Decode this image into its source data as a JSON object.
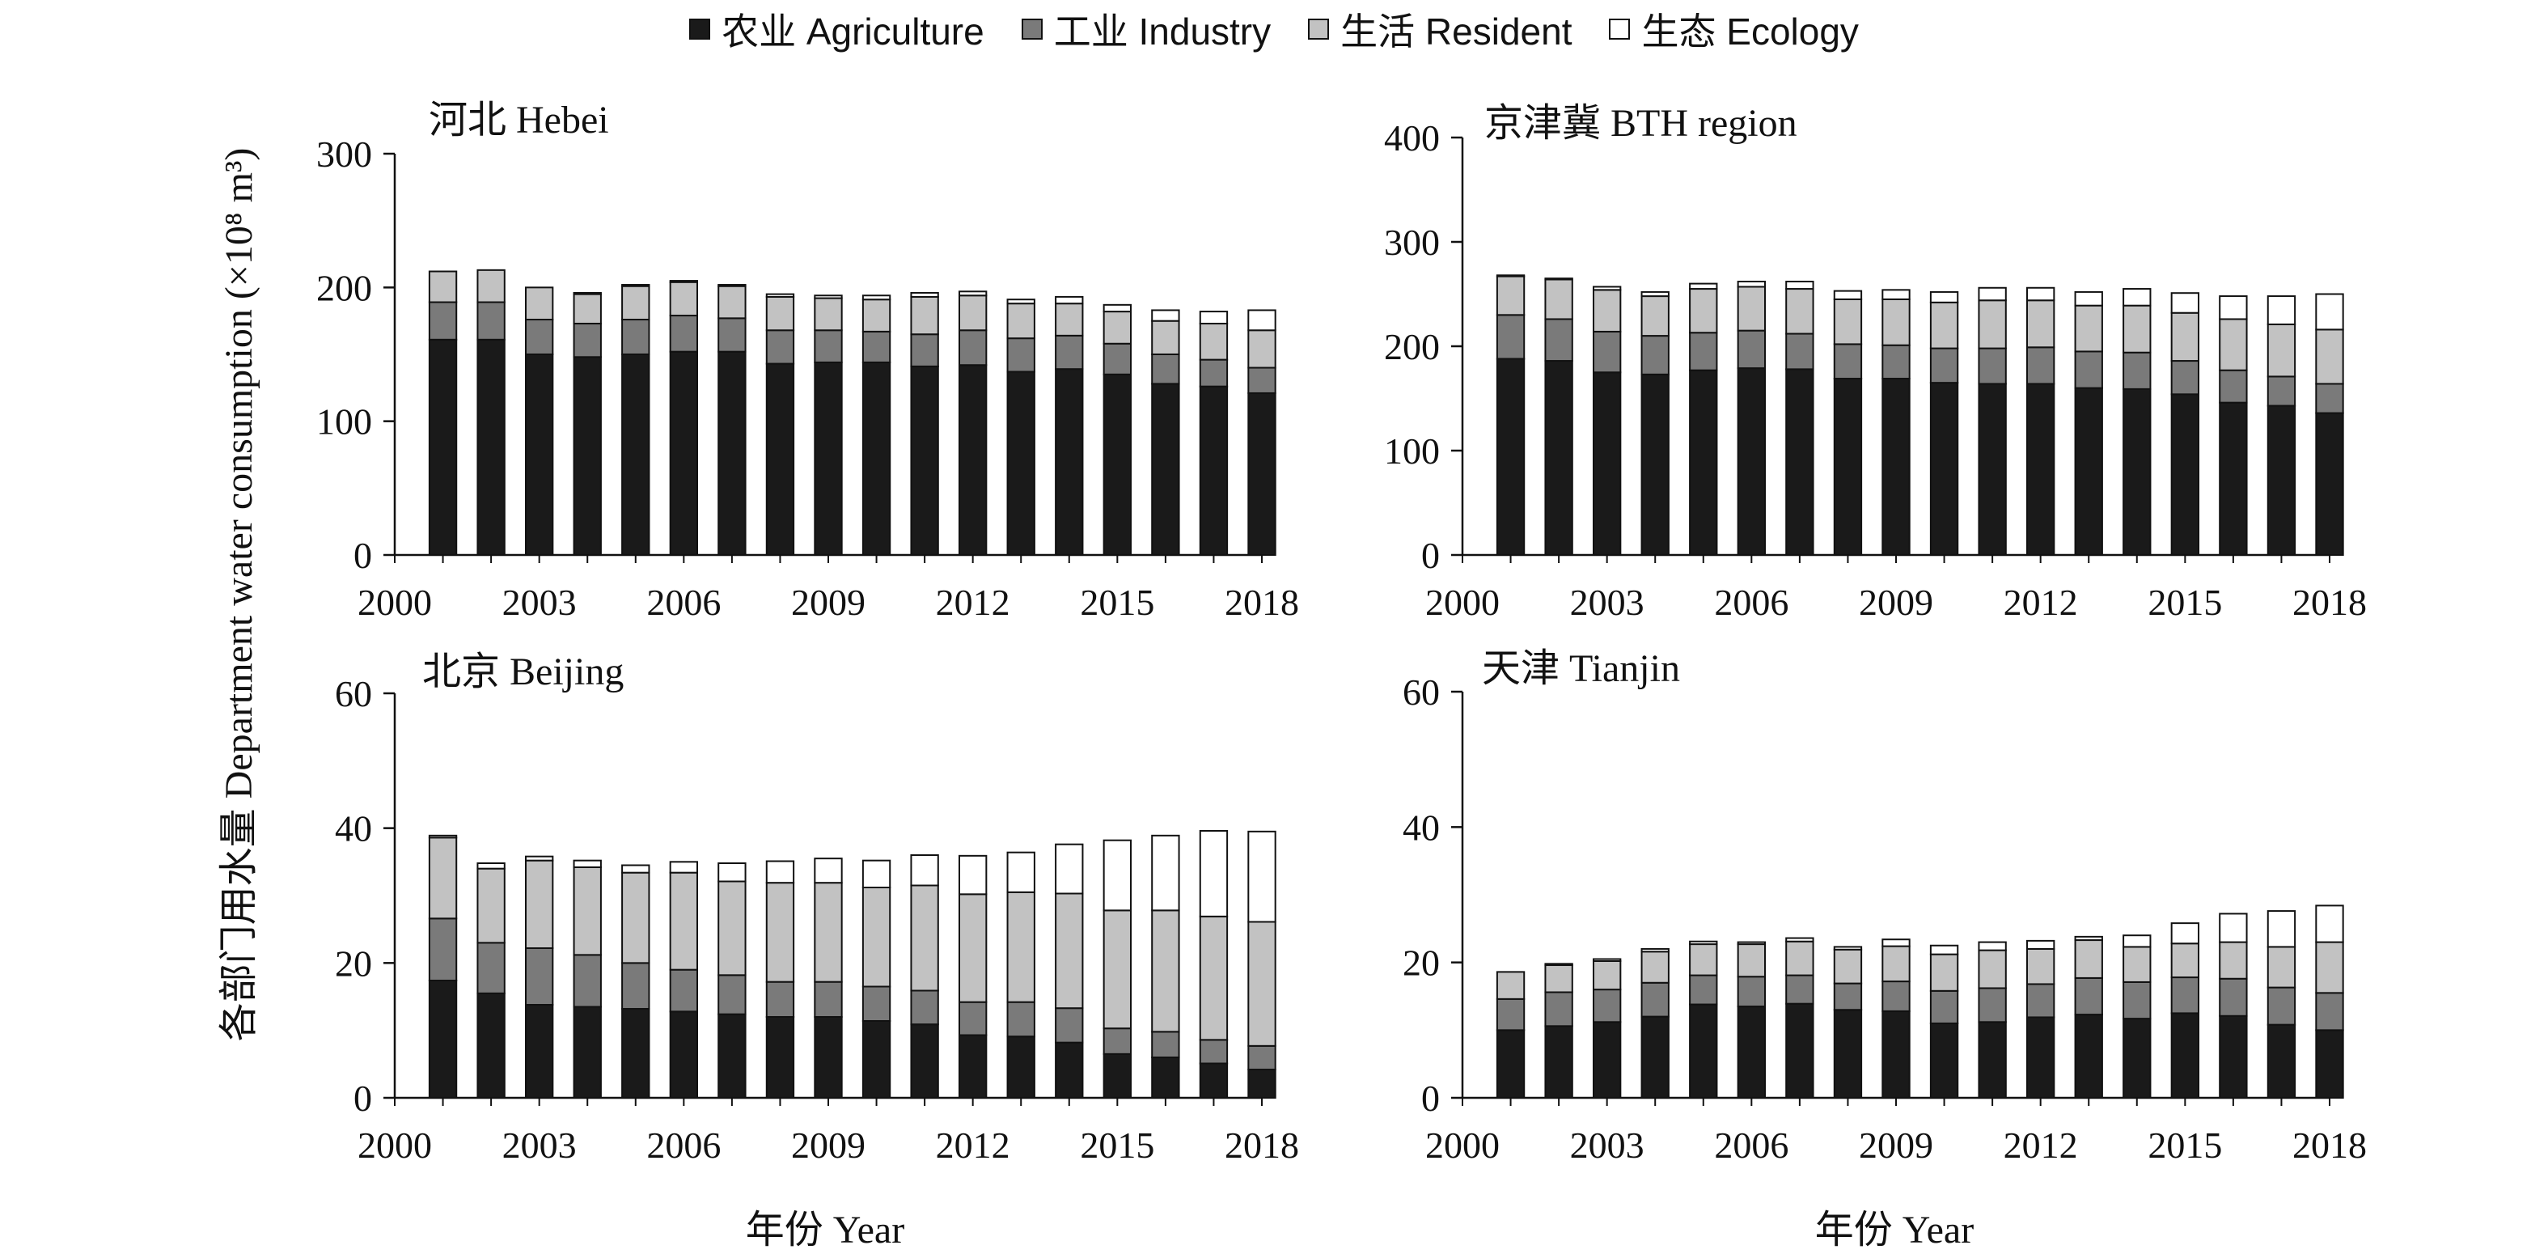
{
  "legend": [
    {
      "name": "农业 Agriculture",
      "color": "#1a1a1a"
    },
    {
      "name": "工业 Industry",
      "color": "#7a7a7a"
    },
    {
      "name": "生活 Resident",
      "color": "#c2c2c2"
    },
    {
      "name": "生态 Ecology",
      "color": "#ffffff"
    }
  ],
  "ylabel": "各部门用水量 Department water consumption (×10⁸ m³)",
  "xlabel": "年份 Year",
  "chart_data": [
    {
      "type": "bar",
      "stacked": true,
      "title": "河北 Hebei",
      "xlabel": "",
      "ylabel": "",
      "ylim": [
        0,
        300
      ],
      "yticks": [
        0,
        100,
        200,
        300
      ],
      "xlim": [
        2000,
        2018
      ],
      "xticks": [
        2000,
        2003,
        2006,
        2009,
        2012,
        2015,
        2018
      ],
      "x": [
        2001,
        2002,
        2003,
        2004,
        2005,
        2006,
        2007,
        2008,
        2009,
        2010,
        2011,
        2012,
        2013,
        2014,
        2015,
        2016,
        2017,
        2018
      ],
      "series": [
        {
          "name": "农业 Agriculture",
          "values": [
            161,
            161,
            150,
            148,
            150,
            152,
            152,
            143,
            144,
            144,
            141,
            142,
            137,
            139,
            135,
            128,
            126,
            121
          ]
        },
        {
          "name": "工业 Industry",
          "values": [
            28,
            28,
            26,
            25,
            26,
            27,
            25,
            25,
            24,
            23,
            24,
            26,
            25,
            25,
            23,
            22,
            20,
            19
          ]
        },
        {
          "name": "生活 Resident",
          "values": [
            23,
            24,
            24,
            22,
            25,
            25,
            24,
            25,
            24,
            24,
            28,
            26,
            26,
            24,
            24,
            25,
            27,
            28
          ]
        },
        {
          "name": "生态 Ecology",
          "values": [
            0,
            0,
            0,
            1,
            1,
            1,
            1,
            2,
            2,
            3,
            3,
            3,
            3,
            5,
            5,
            8,
            9,
            15
          ]
        }
      ]
    },
    {
      "type": "bar",
      "stacked": true,
      "title": "京津冀 BTH region",
      "xlabel": "",
      "ylabel": "",
      "ylim": [
        0,
        400
      ],
      "yticks": [
        0,
        100,
        200,
        300,
        400
      ],
      "xlim": [
        2000,
        2018
      ],
      "xticks": [
        2000,
        2003,
        2006,
        2009,
        2012,
        2015,
        2018
      ],
      "x": [
        2001,
        2002,
        2003,
        2004,
        2005,
        2006,
        2007,
        2008,
        2009,
        2010,
        2011,
        2012,
        2013,
        2014,
        2015,
        2016,
        2017,
        2018
      ],
      "series": [
        {
          "name": "农业 Agriculture",
          "values": [
            188,
            186,
            175,
            173,
            177,
            179,
            178,
            169,
            169,
            165,
            164,
            164,
            160,
            159,
            154,
            146,
            143,
            136
          ]
        },
        {
          "name": "工业 Industry",
          "values": [
            42,
            40,
            39,
            37,
            36,
            36,
            34,
            33,
            32,
            33,
            34,
            35,
            35,
            35,
            32,
            31,
            28,
            28
          ]
        },
        {
          "name": "生活 Resident",
          "values": [
            37,
            38,
            40,
            38,
            42,
            42,
            43,
            43,
            44,
            44,
            46,
            45,
            44,
            45,
            46,
            49,
            50,
            52
          ]
        },
        {
          "name": "生态 Ecology",
          "values": [
            1,
            1,
            3,
            4,
            5,
            5,
            7,
            8,
            9,
            10,
            12,
            12,
            13,
            16,
            19,
            22,
            27,
            34
          ]
        }
      ]
    },
    {
      "type": "bar",
      "stacked": true,
      "title": "北京 Beijing",
      "xlabel": "",
      "ylabel": "",
      "ylim": [
        0,
        60
      ],
      "yticks": [
        0,
        20,
        40,
        60
      ],
      "xlim": [
        2000,
        2018
      ],
      "xticks": [
        2000,
        2003,
        2006,
        2009,
        2012,
        2015,
        2018
      ],
      "x": [
        2001,
        2002,
        2003,
        2004,
        2005,
        2006,
        2007,
        2008,
        2009,
        2010,
        2011,
        2012,
        2013,
        2014,
        2015,
        2016,
        2017,
        2018
      ],
      "series": [
        {
          "name": "农业 Agriculture",
          "values": [
            17.4,
            15.5,
            13.8,
            13.5,
            13.2,
            12.8,
            12.4,
            12.0,
            12.0,
            11.4,
            10.9,
            9.3,
            9.1,
            8.2,
            6.5,
            6.0,
            5.1,
            4.2
          ]
        },
        {
          "name": "工业 Industry",
          "values": [
            9.2,
            7.5,
            8.4,
            7.7,
            6.8,
            6.2,
            5.8,
            5.2,
            5.2,
            5.1,
            5.0,
            4.9,
            5.1,
            5.1,
            3.8,
            3.8,
            3.5,
            3.5
          ]
        },
        {
          "name": "生活 Resident",
          "values": [
            12.0,
            11.0,
            13.0,
            13.0,
            13.4,
            14.4,
            13.9,
            14.7,
            14.7,
            14.7,
            15.6,
            16.0,
            16.3,
            17.0,
            17.5,
            18.0,
            18.3,
            18.4
          ]
        },
        {
          "name": "生态 Ecology",
          "values": [
            0.3,
            0.8,
            0.6,
            1.0,
            1.1,
            1.6,
            2.7,
            3.2,
            3.6,
            4.0,
            4.5,
            5.7,
            5.9,
            7.3,
            10.4,
            11.1,
            12.7,
            13.4
          ]
        }
      ]
    },
    {
      "type": "bar",
      "stacked": true,
      "title": "天津 Tianjin",
      "xlabel": "",
      "ylabel": "",
      "ylim": [
        0,
        60
      ],
      "yticks": [
        0,
        20,
        40,
        60
      ],
      "xlim": [
        2000,
        2018
      ],
      "xticks": [
        2000,
        2003,
        2006,
        2009,
        2012,
        2015,
        2018
      ],
      "x": [
        2001,
        2002,
        2003,
        2004,
        2005,
        2006,
        2007,
        2008,
        2009,
        2010,
        2011,
        2012,
        2013,
        2014,
        2015,
        2016,
        2017,
        2018
      ],
      "series": [
        {
          "name": "农业 Agriculture",
          "values": [
            10.0,
            10.6,
            11.2,
            12.0,
            13.8,
            13.5,
            13.9,
            13.0,
            12.8,
            11.0,
            11.2,
            11.9,
            12.3,
            11.7,
            12.5,
            12.1,
            10.8,
            10.0
          ]
        },
        {
          "name": "工业 Industry",
          "values": [
            4.6,
            5.0,
            4.8,
            5.0,
            4.3,
            4.4,
            4.2,
            3.9,
            4.4,
            4.8,
            5.0,
            4.9,
            5.4,
            5.4,
            5.3,
            5.5,
            5.5,
            5.5
          ]
        },
        {
          "name": "生活 Resident",
          "values": [
            4.0,
            4.0,
            4.2,
            4.6,
            4.6,
            4.8,
            5.0,
            5.0,
            5.2,
            5.4,
            5.6,
            5.2,
            5.6,
            5.2,
            5.0,
            5.4,
            6.0,
            7.5
          ]
        },
        {
          "name": "生态 Ecology",
          "values": [
            0.0,
            0.2,
            0.3,
            0.4,
            0.4,
            0.3,
            0.5,
            0.4,
            1.0,
            1.3,
            1.2,
            1.2,
            0.5,
            1.7,
            3.0,
            4.2,
            5.3,
            5.4
          ]
        }
      ]
    }
  ]
}
